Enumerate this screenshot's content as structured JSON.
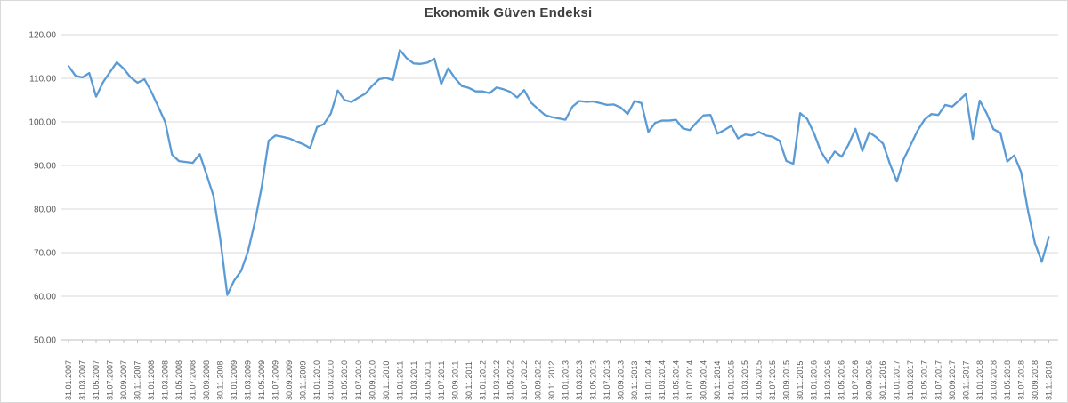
{
  "chart": {
    "title": "Ekonomik Güven Endeksi"
  },
  "chart_data": {
    "type": "line",
    "title": "Ekonomik Güven Endeksi",
    "series_name": "Ekonomik Güven Endeksi",
    "legend": "none",
    "grid": true,
    "ylim": [
      50,
      120
    ],
    "ytick_step": 10,
    "yticks": [
      "120.00",
      "110.00",
      "100.00",
      "90.00",
      "80.00",
      "70.00",
      "60.00",
      "50.00"
    ],
    "ytick_values": [
      120,
      110,
      100,
      90,
      80,
      70,
      60,
      50
    ],
    "x_label_interval_months": 2,
    "x_labels": [
      "31.01.2007",
      "31.03.2007",
      "31.05.2007",
      "31.07.2007",
      "30.09.2007",
      "30.11.2007",
      "31.01.2008",
      "31.03.2008",
      "31.05.2008",
      "31.07.2008",
      "30.09.2008",
      "30.11.2008",
      "31.01.2009",
      "31.03.2009",
      "31.05.2009",
      "31.07.2009",
      "30.09.2009",
      "30.11.2009",
      "31.01.2010",
      "31.03.2010",
      "31.05.2010",
      "31.07.2010",
      "30.09.2010",
      "30.11.2010",
      "31.01.2011",
      "31.03.2011",
      "31.05.2011",
      "31.07.2011",
      "30.09.2011",
      "30.11.2011",
      "31.01.2012",
      "31.03.2012",
      "31.05.2012",
      "31.07.2012",
      "30.09.2012",
      "30.11.2012",
      "31.01.2013",
      "31.03.2013",
      "31.05.2013",
      "31.07.2013",
      "30.09.2013",
      "30.11.2013",
      "31.01.2014",
      "31.03.2014",
      "31.05.2014",
      "31.07.2014",
      "30.09.2014",
      "30.11.2014",
      "31.01.2015",
      "31.03.2015",
      "31.05.2015",
      "31.07.2015",
      "30.09.2015",
      "30.11.2015",
      "31.01.2016",
      "31.03.2016",
      "31.05.2016",
      "31.07.2016",
      "30.09.2016",
      "30.11.2016",
      "31.01.2017",
      "31.03.2017",
      "31.05.2017",
      "31.07.2017",
      "30.09.2017",
      "30.11.2017",
      "31.01.2018",
      "31.03.2018",
      "31.05.2018",
      "31.07.2018",
      "30.09.2018",
      "31.11.2018"
    ],
    "values": [
      112.8,
      110.6,
      110.2,
      111.2,
      105.8,
      109.1,
      111.4,
      113.7,
      112.2,
      110.2,
      109.0,
      109.8,
      106.9,
      103.5,
      100.0,
      92.5,
      91.0,
      90.8,
      90.6,
      92.6,
      87.9,
      83.0,
      73.0,
      60.3,
      63.6,
      65.8,
      70.3,
      77.0,
      85.2,
      95.7,
      96.9,
      96.6,
      96.2,
      95.5,
      94.9,
      94.0,
      98.8,
      99.5,
      101.9,
      107.2,
      105.0,
      104.6,
      105.6,
      106.5,
      108.3,
      109.8,
      110.1,
      109.6,
      116.5,
      114.6,
      113.4,
      113.3,
      113.6,
      114.5,
      108.7,
      112.3,
      110.0,
      108.2,
      107.8,
      107.0,
      107.0,
      106.6,
      107.9,
      107.5,
      106.9,
      105.6,
      107.3,
      104.4,
      103.0,
      101.6,
      101.1,
      100.8,
      100.5,
      103.5,
      104.8,
      104.6,
      104.7,
      104.3,
      103.9,
      104.0,
      103.3,
      101.8,
      104.8,
      104.3,
      97.7,
      99.8,
      100.3,
      100.3,
      100.5,
      98.5,
      98.1,
      99.9,
      101.5,
      101.6,
      97.3,
      98.1,
      99.1,
      96.2,
      97.1,
      96.9,
      97.7,
      96.9,
      96.6,
      95.7,
      91.0,
      90.4,
      102.0,
      100.7,
      97.4,
      93.2,
      90.7,
      93.2,
      92.0,
      94.8,
      98.4,
      93.3,
      97.6,
      96.5,
      95.0,
      90.3,
      86.3,
      91.5,
      94.7,
      98.0,
      100.5,
      101.8,
      101.6,
      103.9,
      103.5,
      104.9,
      106.4,
      96.1,
      104.9,
      102.0,
      98.3,
      97.5,
      90.9,
      92.3,
      88.5,
      79.6,
      72.2,
      67.9,
      73.6
    ],
    "colors": {
      "line": "#5B9BD5",
      "grid": "#D9D9D9",
      "axis": "#BFBFBF",
      "tick": "#BFBFBF",
      "axis_text": "#595959",
      "title_text": "#3F3F3F",
      "background": "#FFFFFF"
    }
  }
}
